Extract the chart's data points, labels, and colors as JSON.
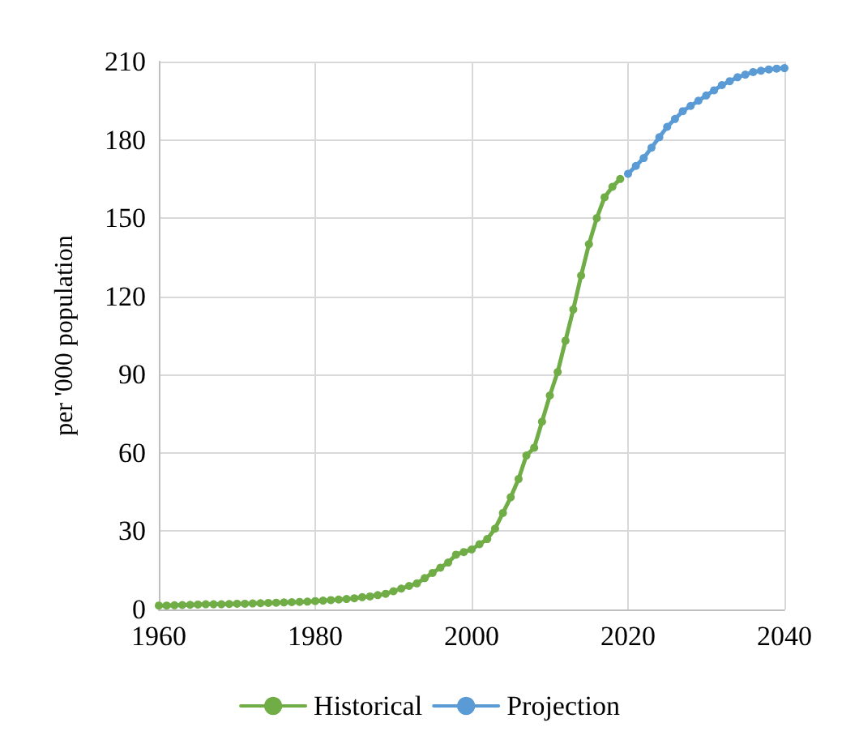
{
  "chart_data": {
    "type": "line",
    "ylabel": "per '000 population",
    "xlim": [
      1960,
      2040
    ],
    "xticks": [
      1960,
      1980,
      2000,
      2020,
      2040
    ],
    "ylim": [
      0,
      210
    ],
    "yticks": [
      0,
      30,
      60,
      90,
      120,
      150,
      180,
      210
    ],
    "grid": true,
    "legend": "bottom",
    "marker": "circle",
    "line_style": "solid",
    "series": [
      {
        "name": "Historical",
        "color": "#70ad47",
        "x": [
          1960,
          1961,
          1962,
          1963,
          1964,
          1965,
          1966,
          1967,
          1968,
          1969,
          1970,
          1971,
          1972,
          1973,
          1974,
          1975,
          1976,
          1977,
          1978,
          1979,
          1980,
          1981,
          1982,
          1983,
          1984,
          1985,
          1986,
          1987,
          1988,
          1989,
          1990,
          1991,
          1992,
          1993,
          1994,
          1995,
          1996,
          1997,
          1998,
          1999,
          2000,
          2001,
          2002,
          2003,
          2004,
          2005,
          2006,
          2007,
          2008,
          2009,
          2010,
          2011,
          2012,
          2013,
          2014,
          2015,
          2016,
          2017,
          2018,
          2019
        ],
        "values": [
          1.5,
          1.5,
          1.6,
          1.7,
          1.8,
          1.9,
          2,
          2,
          2,
          2.1,
          2.2,
          2.2,
          2.3,
          2.4,
          2.5,
          2.6,
          2.7,
          2.8,
          2.9,
          3,
          3.2,
          3.4,
          3.6,
          3.8,
          4,
          4.3,
          4.7,
          5,
          5.5,
          6,
          7,
          8,
          9,
          10,
          12,
          14,
          16,
          18,
          21,
          22,
          23,
          25,
          27,
          31,
          37,
          43,
          50,
          59,
          62,
          72,
          82,
          91,
          103,
          115,
          128,
          140,
          150,
          158,
          162,
          165
        ]
      },
      {
        "name": "Projection",
        "color": "#5b9bd5",
        "x": [
          2020,
          2021,
          2022,
          2023,
          2024,
          2025,
          2026,
          2027,
          2028,
          2029,
          2030,
          2031,
          2032,
          2033,
          2034,
          2035,
          2036,
          2037,
          2038,
          2039,
          2040
        ],
        "values": [
          167,
          170,
          173,
          177,
          181,
          185,
          188,
          191,
          193,
          195,
          197,
          199,
          201,
          202.5,
          204,
          205,
          206,
          206.5,
          207,
          207.3,
          207.5
        ]
      }
    ]
  }
}
